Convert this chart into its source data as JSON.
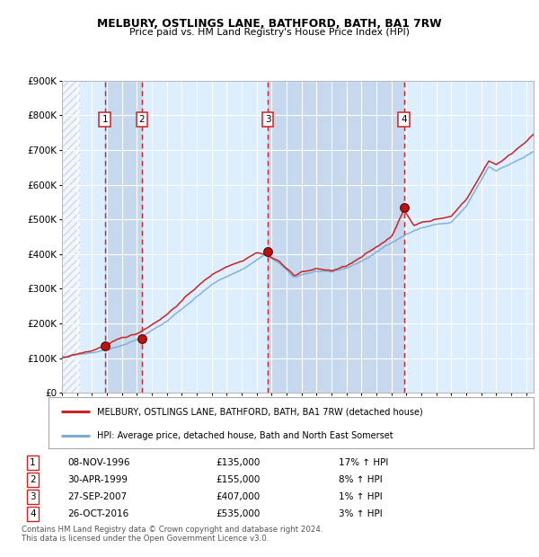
{
  "title1": "MELBURY, OSTLINGS LANE, BATHFORD, BATH, BA1 7RW",
  "title2": "Price paid vs. HM Land Registry's House Price Index (HPI)",
  "ylabel_ticks": [
    "£0",
    "£100K",
    "£200K",
    "£300K",
    "£400K",
    "£500K",
    "£600K",
    "£700K",
    "£800K",
    "£900K"
  ],
  "ytick_values": [
    0,
    100000,
    200000,
    300000,
    400000,
    500000,
    600000,
    700000,
    800000,
    900000
  ],
  "xmin": 1994.0,
  "xmax": 2025.5,
  "ymin": 0,
  "ymax": 900000,
  "purchases": [
    {
      "num": 1,
      "date": "08-NOV-1996",
      "year": 1996.86,
      "price": 135000,
      "pct": "17%",
      "dir": "↑"
    },
    {
      "num": 2,
      "date": "30-APR-1999",
      "year": 1999.33,
      "price": 155000,
      "pct": "8%",
      "dir": "↑"
    },
    {
      "num": 3,
      "date": "27-SEP-2007",
      "year": 2007.75,
      "price": 407000,
      "pct": "1%",
      "dir": "↑"
    },
    {
      "num": 4,
      "date": "26-OCT-2016",
      "year": 2016.83,
      "price": 535000,
      "pct": "3%",
      "dir": "↑"
    }
  ],
  "hpi_color": "#7aacd4",
  "price_color": "#cc2222",
  "bg_chart": "#ddeeff",
  "bg_stripe": "#c5d8ee",
  "grid_color": "#ffffff",
  "vline_color": "#cc2222",
  "legend_label1": "MELBURY, OSTLINGS LANE, BATHFORD, BATH, BA1 7RW (detached house)",
  "legend_label2": "HPI: Average price, detached house, Bath and North East Somerset",
  "footer": "Contains HM Land Registry data © Crown copyright and database right 2024.\nThis data is licensed under the Open Government Licence v3.0.",
  "hatch_color": "#bbbbbb",
  "hpi_anchors_y": [
    1994.0,
    1995.0,
    1996.0,
    1997.0,
    1998.0,
    1999.0,
    2000.0,
    2001.0,
    2002.0,
    2003.0,
    2004.0,
    2005.0,
    2006.0,
    2007.0,
    2007.5,
    2008.5,
    2009.5,
    2010.0,
    2011.0,
    2012.0,
    2013.0,
    2014.0,
    2015.0,
    2016.0,
    2017.0,
    2018.0,
    2019.0,
    2020.0,
    2021.0,
    2022.0,
    2022.5,
    2023.0,
    2024.0,
    2025.5
  ],
  "hpi_anchors_v": [
    100000,
    110000,
    118000,
    128000,
    143000,
    160000,
    185000,
    212000,
    248000,
    285000,
    318000,
    342000,
    362000,
    390000,
    405000,
    380000,
    335000,
    345000,
    355000,
    348000,
    360000,
    380000,
    405000,
    435000,
    460000,
    478000,
    488000,
    490000,
    535000,
    610000,
    650000,
    640000,
    660000,
    690000
  ],
  "price_anchors_y": [
    1994.0,
    1995.0,
    1996.0,
    1997.0,
    1998.0,
    1999.0,
    2000.0,
    2001.0,
    2002.0,
    2003.0,
    2004.0,
    2005.0,
    2006.0,
    2007.0,
    2007.75,
    2008.5,
    2009.5,
    2010.0,
    2011.0,
    2012.0,
    2013.0,
    2014.0,
    2015.0,
    2016.0,
    2016.83,
    2017.5,
    2018.0,
    2019.0,
    2020.0,
    2021.0,
    2022.0,
    2022.5,
    2023.0,
    2024.0,
    2025.0,
    2025.5
  ],
  "price_anchors_v": [
    102000,
    112000,
    122000,
    140000,
    155000,
    168000,
    197000,
    228000,
    268000,
    308000,
    342000,
    368000,
    385000,
    415000,
    407000,
    390000,
    348000,
    360000,
    368000,
    362000,
    375000,
    398000,
    425000,
    458000,
    535000,
    490000,
    500000,
    510000,
    518000,
    568000,
    640000,
    680000,
    670000,
    700000,
    740000,
    760000
  ]
}
